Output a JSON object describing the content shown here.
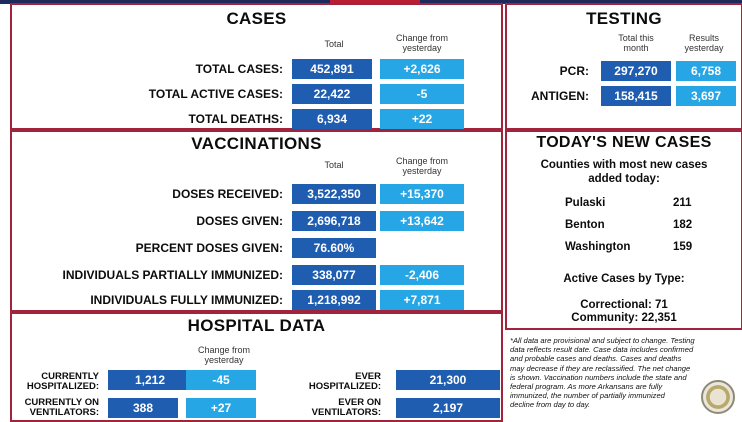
{
  "cases": {
    "title": "CASES",
    "col_total": "Total",
    "col_change": "Change from yesterday",
    "rows": [
      {
        "label": "TOTAL CASES:",
        "total": "452,891",
        "change": "+2,626"
      },
      {
        "label": "TOTAL ACTIVE CASES:",
        "total": "22,422",
        "change": "-5"
      },
      {
        "label": "TOTAL DEATHS:",
        "total": "6,934",
        "change": "+22"
      }
    ]
  },
  "testing": {
    "title": "TESTING",
    "col_total": "Total this month",
    "col_results": "Results yesterday",
    "rows": [
      {
        "label": "PCR:",
        "total": "297,270",
        "results": "6,758"
      },
      {
        "label": "ANTIGEN:",
        "total": "158,415",
        "results": "3,697"
      }
    ]
  },
  "vaccinations": {
    "title": "VACCINATIONS",
    "col_total": "Total",
    "col_change": "Change from yesterday",
    "rows": [
      {
        "label": "DOSES RECEIVED:",
        "total": "3,522,350",
        "change": "+15,370"
      },
      {
        "label": "DOSES GIVEN:",
        "total": "2,696,718",
        "change": "+13,642"
      },
      {
        "label": "PERCENT DOSES GIVEN:",
        "total": "76.60%",
        "change": ""
      },
      {
        "label": "INDIVIDUALS PARTIALLY IMMUNIZED:",
        "total": "338,077",
        "change": "-2,406"
      },
      {
        "label": "INDIVIDUALS FULLY IMMUNIZED:",
        "total": "1,218,992",
        "change": "+7,871"
      }
    ]
  },
  "new_cases": {
    "title": "TODAY'S NEW CASES",
    "subtitle_1": "Counties with most new cases",
    "subtitle_2": "added today:",
    "counties": [
      {
        "name": "Pulaski",
        "count": "211"
      },
      {
        "name": "Benton",
        "count": "182"
      },
      {
        "name": "Washington",
        "count": "159"
      }
    ],
    "active_heading": "Active Cases by Type:",
    "correctional": "Correctional: 71",
    "community": "Community: 22,351"
  },
  "hospital": {
    "title": "HOSPITAL DATA",
    "col_change": "Change from yesterday",
    "hospitalized_label_1": "CURRENTLY",
    "hospitalized_label_2": "HOSPITALIZED:",
    "hospitalized": "1,212",
    "hospitalized_change": "-45",
    "ventilators_label_1": "CURRENTLY ON",
    "ventilators_label_2": "VENTILATORS:",
    "ventilators": "388",
    "ventilators_change": "+27",
    "ever_hosp_label_1": "EVER",
    "ever_hosp_label_2": "HOSPITALIZED:",
    "ever_hosp": "21,300",
    "ever_vent_label_1": "EVER ON",
    "ever_vent_label_2": "VENTILATORS:",
    "ever_vent": "2,197"
  },
  "footnote": {
    "line1": "*All data are provisional and subject to change. Testing",
    "line2": "data reflects result date. Case data includes confirmed",
    "line3": "and probable cases and deaths. Cases and deaths",
    "line4": "may decrease if they are reclassified. The net change",
    "line5": "is shown. Vaccination numbers include the state and",
    "line6": "federal program. As more Arkansans are fully",
    "line7": "immunized, the number of partially immunized",
    "line8": "decline from day to day."
  },
  "colors": {
    "border": "#a0243c",
    "dark_box": "#1f5db0",
    "light_box": "#27a6e6"
  }
}
